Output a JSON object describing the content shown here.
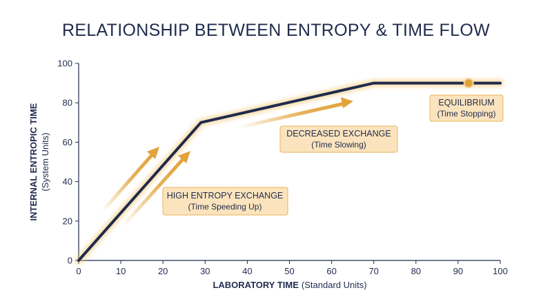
{
  "chart_data": {
    "type": "line",
    "title": "RELATIONSHIP BETWEEN ENTROPY & TIME FLOW",
    "xlabel": "LABORATORY TIME",
    "xlabel_units": "(Standard Units)",
    "ylabel": "INTERNAL ENTROPIC TIME",
    "ylabel_units": "(System Units)",
    "xlim": [
      0,
      100
    ],
    "ylim": [
      0,
      100
    ],
    "x_ticks": [
      0,
      10,
      20,
      30,
      40,
      50,
      60,
      70,
      80,
      90,
      100
    ],
    "y_ticks": [
      0,
      20,
      40,
      60,
      80,
      100
    ],
    "grid": false,
    "series": [
      {
        "x": [
          0,
          29,
          70,
          100
        ],
        "y": [
          0,
          70,
          90,
          90
        ]
      }
    ],
    "marker": {
      "x": 92.5,
      "y": 90
    },
    "annotations": [
      {
        "title": "HIGH ENTROPY EXCHANGE",
        "subtitle": "(Time Speeding Up)"
      },
      {
        "title": "DECREASED EXCHANGE",
        "subtitle": "(Time Slowing)"
      },
      {
        "title": "EQUILIBRIUM",
        "subtitle": "(Time Stopping)"
      }
    ],
    "colors": {
      "line": "#1f2b4d",
      "glow": "#f3c46c",
      "accent": "#e2a33a",
      "box_fill": "#fbe4bd",
      "box_border": "#e9b25a",
      "text": "#1f2b4d"
    }
  }
}
